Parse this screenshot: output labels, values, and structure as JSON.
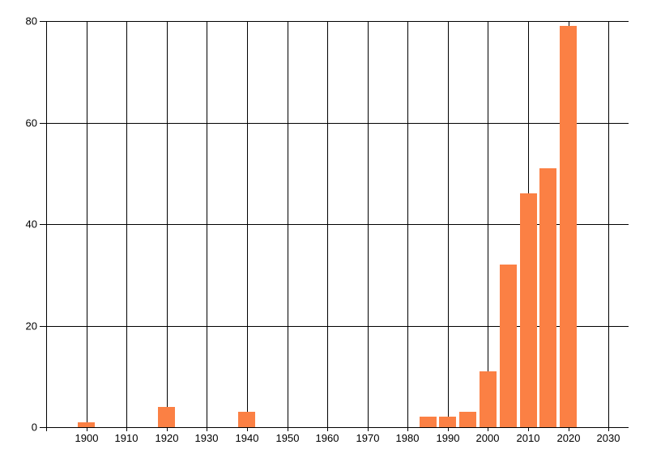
{
  "chart_data": {
    "type": "bar",
    "title": "",
    "xlabel": "",
    "ylabel": "",
    "x": [
      1900,
      1920,
      1940,
      1985,
      1990,
      1995,
      2000,
      2005,
      2010,
      2015,
      2020
    ],
    "values": [
      1,
      4,
      3,
      2,
      2,
      3,
      11,
      32,
      46,
      51,
      79
    ],
    "xlim": [
      1890,
      2035
    ],
    "ylim": [
      0,
      80
    ],
    "x_tick_labels": [
      1900,
      1910,
      1920,
      1930,
      1940,
      1950,
      1960,
      1970,
      1980,
      1990,
      2000,
      2010,
      2020,
      2030
    ],
    "x_gridlines": [
      1890,
      1900,
      1910,
      1920,
      1930,
      1940,
      1950,
      1960,
      1970,
      1980,
      1990,
      2000,
      2010,
      2020,
      2030
    ],
    "y_ticks": [
      0,
      20,
      40,
      60,
      80
    ],
    "grid": "both",
    "legend": "none",
    "bar_color": "#fb8044",
    "grid_color": "#000000",
    "text_color": "#000000",
    "background_color": "#ffffff"
  }
}
